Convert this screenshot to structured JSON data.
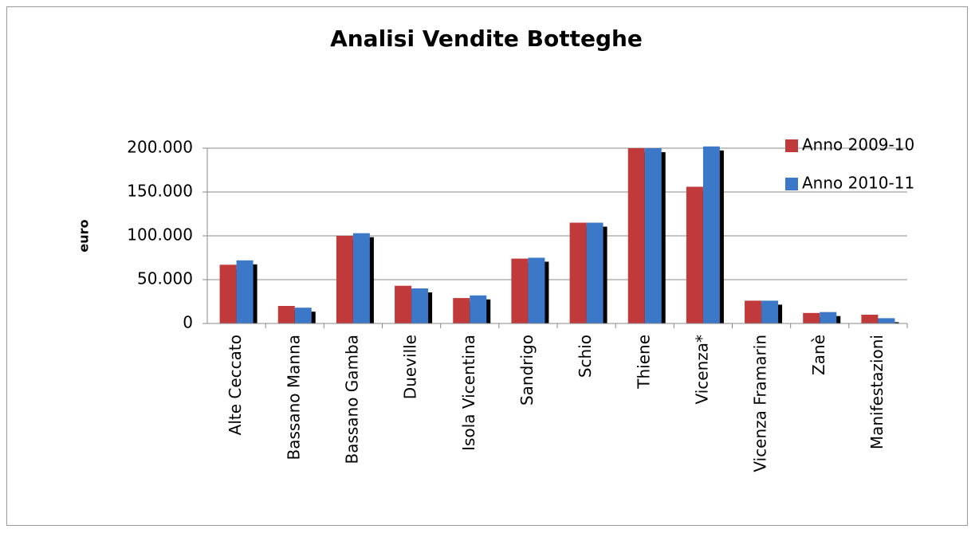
{
  "chart_data": {
    "type": "bar",
    "title": "Analisi Vendite Botteghe",
    "y_label": "euro",
    "categories": [
      "Alte Ceccato",
      "Bassano Manna",
      "Bassano Gamba",
      "Dueville",
      "Isola Vicentina",
      "Sandrigo",
      "Schio",
      "Thiene",
      "Vicenza*",
      "Vicenza Framarin",
      "Zanè",
      "Manifestazioni"
    ],
    "series": [
      {
        "name": "Anno 2009-10",
        "color": "#c0393b",
        "values": [
          67000,
          20000,
          100000,
          43000,
          29000,
          74000,
          115000,
          200000,
          156000,
          26000,
          12000,
          10000
        ]
      },
      {
        "name": "Anno 2010-11",
        "color": "#3b78c8",
        "values": [
          72000,
          18000,
          103000,
          40000,
          32000,
          75000,
          115000,
          200000,
          202000,
          26000,
          13000,
          6000
        ]
      }
    ],
    "ylim": [
      0,
      200000
    ],
    "yticks": [
      0,
      {
        "value": 50000,
        "label": "50.000"
      },
      {
        "value": 100000,
        "label": "100.000"
      },
      {
        "value": 150000,
        "label": "150.000"
      },
      {
        "value": 200000,
        "label": "200.000"
      }
    ],
    "grid": true,
    "legend": "top-right"
  }
}
